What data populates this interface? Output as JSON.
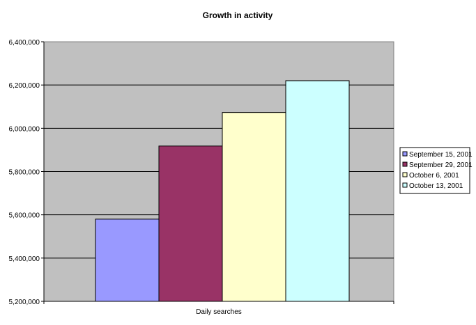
{
  "chart_data": {
    "type": "bar",
    "title": "Growth in activity",
    "categories": [
      "Daily searches"
    ],
    "xlabel": "",
    "ylabel": "",
    "ylim": [
      5200000,
      6400000
    ],
    "y_tick_step": 200000,
    "y_tick_labels": [
      "5,200,000",
      "5,400,000",
      "5,600,000",
      "5,800,000",
      "6,000,000",
      "6,200,000",
      "6,400,000"
    ],
    "grid": true,
    "legend_position": "right",
    "plot_background": "#c0c0c0",
    "series": [
      {
        "name": "September 15, 2001",
        "values": [
          5580000
        ],
        "color": "#9999ff"
      },
      {
        "name": "September 29, 2001",
        "values": [
          5918000
        ],
        "color": "#993366"
      },
      {
        "name": "October 6, 2001",
        "values": [
          6073000
        ],
        "color": "#ffffcc"
      },
      {
        "name": "October 13, 2001",
        "values": [
          6220000
        ],
        "color": "#ccffff"
      }
    ]
  }
}
